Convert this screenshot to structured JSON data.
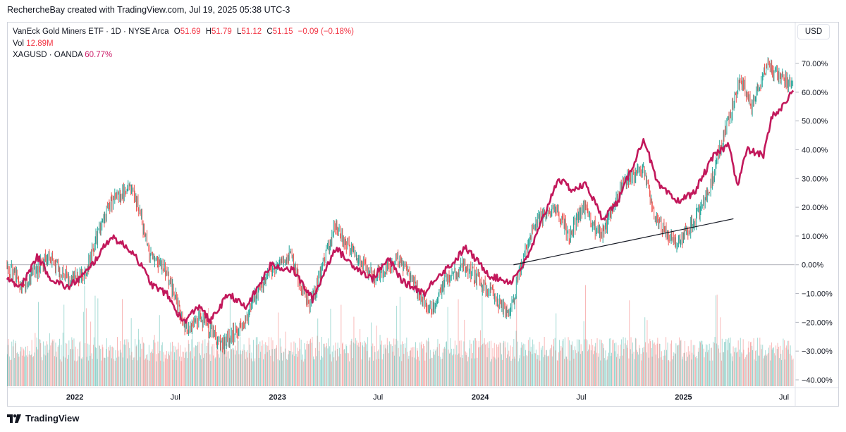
{
  "credit": "RechercheBay created with TradingView.com, Jul 19, 2025 05:38 UTC-3",
  "currency_button": "USD",
  "footer": {
    "brand": "TradingView"
  },
  "legend": {
    "symbol": "VanEck Gold Miners ETF · 1D · NYSE Arca",
    "open_label": "O",
    "open_value": "51.69",
    "high_label": "H",
    "high_value": "51.79",
    "low_label": "L",
    "low_value": "51.12",
    "close_label": "C",
    "close_value": "51.15",
    "change": "−0.09 (−0.18%)",
    "vol_label": "Vol",
    "vol_value": "12.89M",
    "compare_symbol": "XAGUSD · OANDA",
    "compare_value": "60.77%"
  },
  "colors": {
    "up": "#26a69a",
    "down": "#ef5350",
    "compare_line": "#c2185b",
    "zero_line": "#9598a1",
    "trend_line": "#131722",
    "change_text": "#f23645"
  },
  "icons": [
    "tradingview-logo-icon"
  ],
  "chart_data": {
    "type": "line",
    "x_axis": {
      "range": [
        "2021-09-01",
        "2025-07-20"
      ],
      "ticks": [
        {
          "date": "2022-01-01",
          "label": "2022",
          "bold": true
        },
        {
          "date": "2022-07-01",
          "label": "Jul",
          "bold": false
        },
        {
          "date": "2023-01-01",
          "label": "2023",
          "bold": true
        },
        {
          "date": "2023-07-01",
          "label": "Jul",
          "bold": false
        },
        {
          "date": "2024-01-01",
          "label": "2024",
          "bold": true
        },
        {
          "date": "2024-07-01",
          "label": "Jul",
          "bold": false
        },
        {
          "date": "2025-01-01",
          "label": "2025",
          "bold": true
        },
        {
          "date": "2025-07-01",
          "label": "Jul",
          "bold": false
        }
      ]
    },
    "y_axis": {
      "unit": "percent",
      "range": [
        -40,
        70
      ],
      "ticks": [
        "70.00%",
        "60.00%",
        "50.00%",
        "40.00%",
        "30.00%",
        "20.00%",
        "10.00%",
        "0.00%",
        "−10.00%",
        "−20.00%",
        "−30.00%",
        "−40.00%"
      ],
      "tick_values": [
        70,
        60,
        50,
        40,
        30,
        20,
        10,
        0,
        -10,
        -20,
        -30,
        -40
      ]
    },
    "series": [
      {
        "name": "VanEck Gold Miners ETF",
        "style": "bars",
        "points": [
          [
            "2021-09-01",
            0
          ],
          [
            "2021-10-01",
            -8
          ],
          [
            "2021-11-15",
            3
          ],
          [
            "2021-12-20",
            -5
          ],
          [
            "2022-01-20",
            -3
          ],
          [
            "2022-03-01",
            20
          ],
          [
            "2022-04-15",
            28
          ],
          [
            "2022-05-15",
            5
          ],
          [
            "2022-06-15",
            -2
          ],
          [
            "2022-07-20",
            -22
          ],
          [
            "2022-08-15",
            -18
          ],
          [
            "2022-09-25",
            -28
          ],
          [
            "2022-11-01",
            -20
          ],
          [
            "2022-12-15",
            -2
          ],
          [
            "2023-01-25",
            3
          ],
          [
            "2023-03-01",
            -15
          ],
          [
            "2023-04-15",
            14
          ],
          [
            "2023-05-15",
            5
          ],
          [
            "2023-06-25",
            -5
          ],
          [
            "2023-08-10",
            2
          ],
          [
            "2023-09-15",
            -10
          ],
          [
            "2023-10-05",
            -17
          ],
          [
            "2023-11-01",
            -5
          ],
          [
            "2023-12-05",
            0
          ],
          [
            "2024-01-10",
            -8
          ],
          [
            "2024-02-25",
            -17
          ],
          [
            "2024-03-15",
            0
          ],
          [
            "2024-04-10",
            15
          ],
          [
            "2024-05-15",
            20
          ],
          [
            "2024-06-10",
            10
          ],
          [
            "2024-07-05",
            20
          ],
          [
            "2024-08-05",
            10
          ],
          [
            "2024-09-15",
            28
          ],
          [
            "2024-10-20",
            34
          ],
          [
            "2024-11-15",
            15
          ],
          [
            "2024-12-20",
            7
          ],
          [
            "2025-01-20",
            15
          ],
          [
            "2025-02-15",
            25
          ],
          [
            "2025-03-15",
            45
          ],
          [
            "2025-04-15",
            65
          ],
          [
            "2025-05-05",
            55
          ],
          [
            "2025-06-01",
            70
          ],
          [
            "2025-06-25",
            65
          ],
          [
            "2025-07-18",
            62
          ]
        ]
      },
      {
        "name": "Vol",
        "style": "volume"
      },
      {
        "name": "XAGUSD",
        "style": "line",
        "points": [
          [
            "2021-09-01",
            -4
          ],
          [
            "2021-09-25",
            -8
          ],
          [
            "2021-10-25",
            3
          ],
          [
            "2021-11-20",
            -5
          ],
          [
            "2021-12-20",
            -8
          ],
          [
            "2022-01-25",
            -2
          ],
          [
            "2022-03-08",
            10
          ],
          [
            "2022-04-18",
            4
          ],
          [
            "2022-05-20",
            -7
          ],
          [
            "2022-06-15",
            -10
          ],
          [
            "2022-07-15",
            -20
          ],
          [
            "2022-08-15",
            -14
          ],
          [
            "2022-09-01",
            -20
          ],
          [
            "2022-10-05",
            -10
          ],
          [
            "2022-11-05",
            -15
          ],
          [
            "2022-12-20",
            0
          ],
          [
            "2023-01-30",
            -2
          ],
          [
            "2023-03-05",
            -12
          ],
          [
            "2023-04-15",
            6
          ],
          [
            "2023-05-10",
            1
          ],
          [
            "2023-06-20",
            -5
          ],
          [
            "2023-07-20",
            2
          ],
          [
            "2023-08-15",
            -6
          ],
          [
            "2023-09-25",
            -10
          ],
          [
            "2023-10-10",
            -5
          ],
          [
            "2023-11-15",
            1
          ],
          [
            "2023-12-05",
            6
          ],
          [
            "2024-01-20",
            -4
          ],
          [
            "2024-02-25",
            -6
          ],
          [
            "2024-03-25",
            2
          ],
          [
            "2024-04-15",
            12
          ],
          [
            "2024-05-20",
            30
          ],
          [
            "2024-06-15",
            26
          ],
          [
            "2024-07-10",
            28
          ],
          [
            "2024-08-08",
            16
          ],
          [
            "2024-09-05",
            22
          ],
          [
            "2024-10-22",
            44
          ],
          [
            "2024-11-15",
            28
          ],
          [
            "2024-12-20",
            22
          ],
          [
            "2025-01-20",
            25
          ],
          [
            "2025-02-25",
            38
          ],
          [
            "2025-03-25",
            42
          ],
          [
            "2025-04-08",
            27
          ],
          [
            "2025-04-25",
            40
          ],
          [
            "2025-05-25",
            38
          ],
          [
            "2025-06-10",
            52
          ],
          [
            "2025-06-25",
            54
          ],
          [
            "2025-07-18",
            60.77
          ]
        ]
      }
    ],
    "zero_line": 0,
    "annotations": [
      {
        "type": "trendline",
        "from": [
          "2024-03-01",
          0
        ],
        "to": [
          "2025-04-01",
          16
        ]
      }
    ],
    "grid": false,
    "legend": "top-left"
  }
}
